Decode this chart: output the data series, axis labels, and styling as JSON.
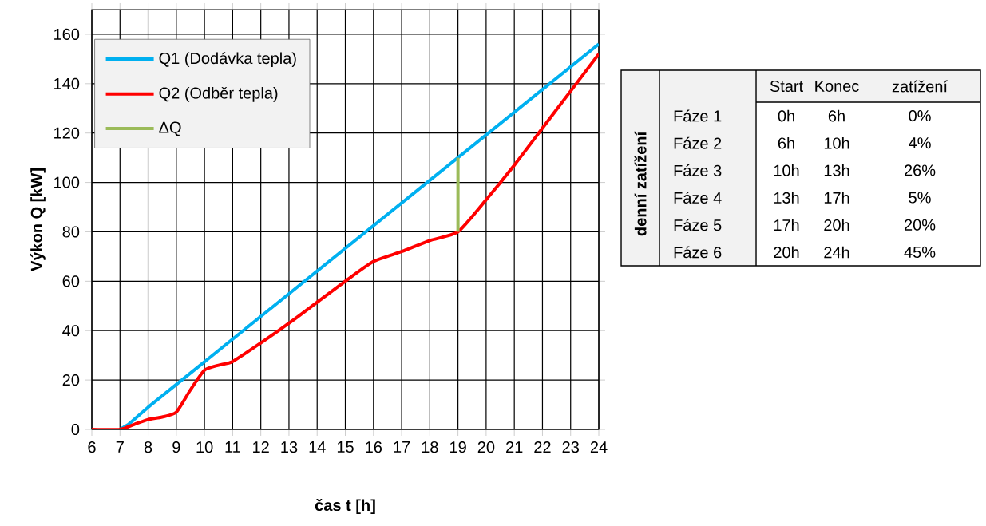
{
  "chart_data": [
    {
      "type": "line",
      "xlabel": "čas t [h]",
      "ylabel": "Výkon Q [kW]",
      "xlim": [
        6,
        24
      ],
      "ylim": [
        0,
        170
      ],
      "xticks": [
        6,
        7,
        8,
        9,
        10,
        11,
        12,
        13,
        14,
        15,
        16,
        17,
        18,
        19,
        20,
        21,
        22,
        23,
        24
      ],
      "yticks": [
        0,
        20,
        40,
        60,
        80,
        100,
        120,
        140,
        160
      ],
      "grid": true,
      "legend": "top left",
      "marker": "none",
      "line_style": "solid",
      "series": [
        {
          "name": "Q1 (Dodávka tepla)",
          "color": "#00b0f0",
          "x": [
            7,
            7.3,
            8,
            24
          ],
          "values": [
            0,
            2,
            9,
            156
          ]
        },
        {
          "name": "Q2 (Odběr tepla)",
          "color": "#ff0000",
          "x": [
            6,
            7,
            7.5,
            8,
            8.5,
            9,
            9.5,
            10,
            10.5,
            11,
            12,
            13,
            14,
            15,
            16,
            17,
            18,
            19,
            20,
            21,
            22,
            23,
            24
          ],
          "values": [
            0,
            0,
            2,
            4,
            5,
            7,
            16,
            24,
            26,
            27.5,
            35,
            43,
            51.5,
            60,
            68,
            72,
            76.5,
            80,
            93,
            107,
            122,
            137,
            152
          ]
        },
        {
          "name": "ΔQ",
          "color": "#9bbb59",
          "x": [
            19,
            19
          ],
          "values": [
            80,
            110
          ]
        }
      ]
    },
    {
      "type": "other",
      "title": "denní zatížení",
      "categories": [
        "Fáze 1",
        "Fáze 2",
        "Fáze 3",
        "Fáze 4",
        "Fáze 5",
        "Fáze 6"
      ],
      "annotations": [
        "Start",
        "Konec",
        "zatížení",
        "0h",
        "6h",
        "0%",
        "6h",
        "10h",
        "4%",
        "10h",
        "13h",
        "26%",
        "13h",
        "17h",
        "5%",
        "17h",
        "20h",
        "20%",
        "20h",
        "24h",
        "45%"
      ]
    }
  ]
}
